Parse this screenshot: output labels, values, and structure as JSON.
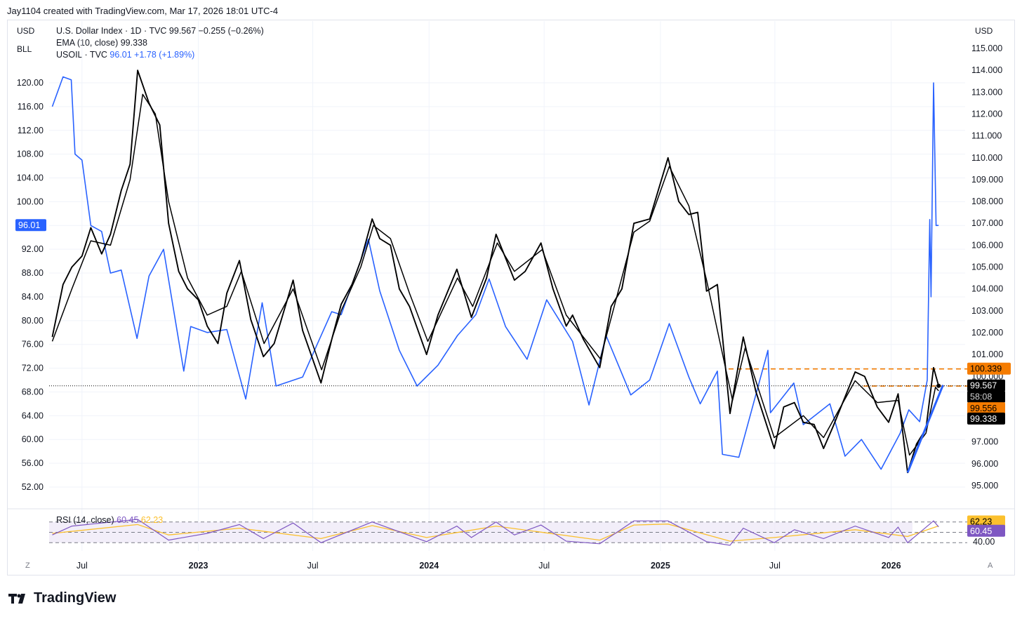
{
  "header": {
    "attribution": "Jay1104 created with TradingView.com, Mar 17, 2026 18:01 UTC-4"
  },
  "left_top": {
    "currency": "USD",
    "scale_label": "BLL"
  },
  "right_top": {
    "currency": "USD"
  },
  "legend": {
    "line1": "U.S. Dollar Index · 1D · TVC  99.567  −0.255 (−0.26%)",
    "line2": "EMA (10, close)  99.338",
    "line3_prefix": "USOIL · TVC",
    "line3_values": "96.01  +1.78 (+1.89%)"
  },
  "rsi": {
    "label": "RSI (14, close)",
    "value": "60.45",
    "ma_value": "62.23"
  },
  "corners": {
    "left": "Z",
    "right": "A"
  },
  "brand": {
    "name": "TradingView"
  },
  "colors": {
    "dxy": "#000000",
    "ema": "#000000",
    "oil": "#2962ff",
    "orange": "#f57c00",
    "rsi_line": "#7e57c2",
    "rsi_ma": "#fbc02d",
    "rsi_band": "#ede7f6"
  },
  "chart_data": {
    "type": "line",
    "x_ticks": [
      "Jul",
      "2023",
      "Jul",
      "2024",
      "Jul",
      "2025",
      "Jul",
      "2026"
    ],
    "left_axis": {
      "ticks": [
        "120.00",
        "116.00",
        "112.00",
        "108.00",
        "104.00",
        "100.00",
        "96.00",
        "92.00",
        "88.00",
        "84.00",
        "80.00",
        "76.00",
        "72.00",
        "68.00",
        "64.00",
        "60.00",
        "56.00",
        "52.00"
      ]
    },
    "right_axis": {
      "ticks": [
        "115.000",
        "114.000",
        "113.000",
        "112.000",
        "111.000",
        "110.000",
        "109.000",
        "108.000",
        "107.000",
        "106.000",
        "105.000",
        "104.000",
        "103.000",
        "102.000",
        "101.000",
        "100.000",
        "97.000",
        "96.000",
        "95.000"
      ]
    },
    "series": [
      {
        "name": "U.S. Dollar Index",
        "axis": "right",
        "values": [
          [
            "2022-05-15",
            101.8
          ],
          [
            "2022-06-01",
            104.2
          ],
          [
            "2022-06-15",
            105.0
          ],
          [
            "2022-07-01",
            105.5
          ],
          [
            "2022-07-15",
            106.8
          ],
          [
            "2022-08-01",
            105.6
          ],
          [
            "2022-08-15",
            106.5
          ],
          [
            "2022-09-01",
            108.5
          ],
          [
            "2022-09-15",
            109.7
          ],
          [
            "2022-09-27",
            114.0
          ],
          [
            "2022-10-15",
            112.5
          ],
          [
            "2022-11-01",
            111.5
          ],
          [
            "2022-11-15",
            107.0
          ],
          [
            "2022-12-01",
            104.8
          ],
          [
            "2022-12-15",
            104.0
          ],
          [
            "2023-01-01",
            103.5
          ],
          [
            "2023-01-15",
            102.3
          ],
          [
            "2023-02-01",
            101.5
          ],
          [
            "2023-02-15",
            103.8
          ],
          [
            "2023-03-07",
            105.3
          ],
          [
            "2023-03-25",
            102.6
          ],
          [
            "2023-04-14",
            100.9
          ],
          [
            "2023-05-01",
            101.5
          ],
          [
            "2023-05-31",
            104.4
          ],
          [
            "2023-06-15",
            102.1
          ],
          [
            "2023-07-14",
            99.7
          ],
          [
            "2023-08-01",
            101.8
          ],
          [
            "2023-08-15",
            103.3
          ],
          [
            "2023-09-01",
            104.2
          ],
          [
            "2023-09-15",
            105.3
          ],
          [
            "2023-10-03",
            107.2
          ],
          [
            "2023-10-15",
            106.3
          ],
          [
            "2023-11-01",
            106.0
          ],
          [
            "2023-11-15",
            104.0
          ],
          [
            "2023-12-01",
            103.2
          ],
          [
            "2023-12-28",
            101.0
          ],
          [
            "2024-01-15",
            102.8
          ],
          [
            "2024-02-14",
            104.9
          ],
          [
            "2024-03-08",
            102.7
          ],
          [
            "2024-04-01",
            104.5
          ],
          [
            "2024-04-16",
            106.5
          ],
          [
            "2024-05-15",
            104.4
          ],
          [
            "2024-06-01",
            104.8
          ],
          [
            "2024-06-26",
            106.1
          ],
          [
            "2024-07-15",
            104.0
          ],
          [
            "2024-08-05",
            102.3
          ],
          [
            "2024-08-15",
            102.8
          ],
          [
            "2024-09-01",
            101.7
          ],
          [
            "2024-09-27",
            100.4
          ],
          [
            "2024-10-15",
            103.2
          ],
          [
            "2024-11-01",
            104.0
          ],
          [
            "2024-11-20",
            107.0
          ],
          [
            "2024-12-15",
            107.2
          ],
          [
            "2025-01-13",
            110.0
          ],
          [
            "2025-01-30",
            108.0
          ],
          [
            "2025-02-15",
            107.4
          ],
          [
            "2025-03-01",
            107.5
          ],
          [
            "2025-03-15",
            103.9
          ],
          [
            "2025-04-01",
            104.2
          ],
          [
            "2025-04-21",
            98.3
          ],
          [
            "2025-05-12",
            101.8
          ],
          [
            "2025-06-01",
            99.3
          ],
          [
            "2025-06-30",
            96.7
          ],
          [
            "2025-07-15",
            98.6
          ],
          [
            "2025-08-01",
            98.8
          ],
          [
            "2025-08-15",
            97.9
          ],
          [
            "2025-09-01",
            97.8
          ],
          [
            "2025-09-16",
            96.7
          ],
          [
            "2025-10-01",
            97.7
          ],
          [
            "2025-11-05",
            100.2
          ],
          [
            "2025-11-20",
            100.0
          ],
          [
            "2025-12-10",
            98.6
          ],
          [
            "2025-12-28",
            97.9
          ],
          [
            "2026-01-12",
            99.2
          ],
          [
            "2026-01-27",
            95.6
          ],
          [
            "2026-02-10",
            96.9
          ],
          [
            "2026-02-25",
            97.6
          ],
          [
            "2026-03-09",
            100.4
          ],
          [
            "2026-03-17",
            99.567
          ]
        ]
      },
      {
        "name": "EMA (10, close)",
        "axis": "right",
        "values": [
          [
            "2022-05-15",
            101.6
          ],
          [
            "2022-06-15",
            104.0
          ],
          [
            "2022-07-15",
            106.2
          ],
          [
            "2022-08-15",
            106.0
          ],
          [
            "2022-09-15",
            109.0
          ],
          [
            "2022-10-05",
            112.9
          ],
          [
            "2022-10-25",
            112.0
          ],
          [
            "2022-11-15",
            108.0
          ],
          [
            "2022-12-15",
            104.5
          ],
          [
            "2023-01-15",
            102.8
          ],
          [
            "2023-02-15",
            103.2
          ],
          [
            "2023-03-10",
            104.8
          ],
          [
            "2023-04-15",
            101.5
          ],
          [
            "2023-05-31",
            104.0
          ],
          [
            "2023-07-15",
            100.3
          ],
          [
            "2023-08-15",
            103.0
          ],
          [
            "2023-09-15",
            105.0
          ],
          [
            "2023-10-05",
            106.9
          ],
          [
            "2023-11-01",
            106.3
          ],
          [
            "2023-12-01",
            103.8
          ],
          [
            "2023-12-30",
            101.6
          ],
          [
            "2024-02-15",
            104.5
          ],
          [
            "2024-03-10",
            103.2
          ],
          [
            "2024-04-18",
            106.1
          ],
          [
            "2024-05-15",
            104.8
          ],
          [
            "2024-06-28",
            105.8
          ],
          [
            "2024-08-05",
            102.8
          ],
          [
            "2024-09-28",
            100.8
          ],
          [
            "2024-11-20",
            106.6
          ],
          [
            "2024-12-15",
            107.1
          ],
          [
            "2025-01-15",
            109.6
          ],
          [
            "2025-02-15",
            107.8
          ],
          [
            "2025-03-15",
            104.4
          ],
          [
            "2025-04-25",
            98.9
          ],
          [
            "2025-05-15",
            101.3
          ],
          [
            "2025-06-30",
            97.2
          ],
          [
            "2025-08-15",
            98.2
          ],
          [
            "2025-09-16",
            97.2
          ],
          [
            "2025-11-05",
            99.8
          ],
          [
            "2025-12-10",
            98.8
          ],
          [
            "2026-01-12",
            98.9
          ],
          [
            "2026-01-30",
            96.4
          ],
          [
            "2026-02-25",
            97.4
          ],
          [
            "2026-03-12",
            99.5
          ],
          [
            "2026-03-17",
            99.338
          ]
        ]
      },
      {
        "name": "USOIL",
        "axis": "left",
        "values": [
          [
            "2022-05-15",
            116.0
          ],
          [
            "2022-06-01",
            121.0
          ],
          [
            "2022-06-14",
            120.5
          ],
          [
            "2022-06-20",
            108.0
          ],
          [
            "2022-07-01",
            107.0
          ],
          [
            "2022-07-15",
            96.0
          ],
          [
            "2022-08-01",
            95.0
          ],
          [
            "2022-08-15",
            88.0
          ],
          [
            "2022-09-01",
            88.5
          ],
          [
            "2022-09-26",
            77.0
          ],
          [
            "2022-10-15",
            87.5
          ],
          [
            "2022-11-07",
            92.0
          ],
          [
            "2022-12-09",
            71.5
          ],
          [
            "2022-12-20",
            79.0
          ],
          [
            "2023-01-15",
            78.0
          ],
          [
            "2023-02-15",
            78.5
          ],
          [
            "2023-03-17",
            66.8
          ],
          [
            "2023-04-12",
            83.0
          ],
          [
            "2023-05-04",
            69.0
          ],
          [
            "2023-06-15",
            70.5
          ],
          [
            "2023-07-31",
            81.5
          ],
          [
            "2023-08-15",
            81.0
          ],
          [
            "2023-09-27",
            93.7
          ],
          [
            "2023-10-15",
            85.0
          ],
          [
            "2023-11-15",
            75.0
          ],
          [
            "2023-12-13",
            69.0
          ],
          [
            "2024-01-15",
            72.5
          ],
          [
            "2024-02-15",
            77.5
          ],
          [
            "2024-03-15",
            81.0
          ],
          [
            "2024-04-05",
            87.0
          ],
          [
            "2024-05-01",
            79.0
          ],
          [
            "2024-06-04",
            73.5
          ],
          [
            "2024-07-05",
            83.5
          ],
          [
            "2024-08-15",
            76.5
          ],
          [
            "2024-09-10",
            65.8
          ],
          [
            "2024-10-07",
            77.5
          ],
          [
            "2024-11-15",
            67.5
          ],
          [
            "2024-12-15",
            70.0
          ],
          [
            "2025-01-15",
            79.5
          ],
          [
            "2025-02-15",
            70.5
          ],
          [
            "2025-03-05",
            66.0
          ],
          [
            "2025-04-01",
            71.5
          ],
          [
            "2025-04-09",
            57.5
          ],
          [
            "2025-05-05",
            57.0
          ],
          [
            "2025-06-20",
            75.0
          ],
          [
            "2025-06-24",
            64.5
          ],
          [
            "2025-07-31",
            69.5
          ],
          [
            "2025-08-15",
            62.5
          ],
          [
            "2025-09-26",
            66.0
          ],
          [
            "2025-10-20",
            57.2
          ],
          [
            "2025-11-15",
            60.0
          ],
          [
            "2025-12-16",
            55.0
          ],
          [
            "2026-01-15",
            61.0
          ],
          [
            "2026-01-29",
            65.0
          ],
          [
            "2026-02-15",
            63.0
          ],
          [
            "2026-02-27",
            70.0
          ],
          [
            "2026-03-03",
            97.0
          ],
          [
            "2026-03-05",
            84.0
          ],
          [
            "2026-03-09",
            120.0
          ],
          [
            "2026-03-13",
            96.0
          ],
          [
            "2026-03-17",
            96.01
          ]
        ]
      }
    ],
    "price_labels": [
      {
        "series": "USOIL",
        "value": "96.01"
      },
      {
        "series": "level",
        "value": "100.339"
      },
      {
        "series": "U.S. Dollar Index",
        "value": "99.567"
      },
      {
        "series": "countdown",
        "value": "58:08"
      },
      {
        "series": "level",
        "value": "99.556"
      },
      {
        "series": "EMA (10, close)",
        "value": "99.338"
      }
    ],
    "horizontal_levels": [
      {
        "value": 100.339,
        "style": "dashed",
        "color": "orange"
      },
      {
        "value": 99.556,
        "style": "dashed",
        "color": "orange"
      },
      {
        "value": 99.567,
        "style": "dotted",
        "color": "black"
      }
    ],
    "trendline": {
      "from": [
        "2026-01-27",
        95.6
      ],
      "to": [
        "2026-03-24",
        99.6
      ],
      "color": "blue"
    },
    "rsi_chart": {
      "axis_ticks": [
        "62.23",
        "60.45",
        "40.00"
      ],
      "bands": [
        70,
        50,
        30
      ],
      "rsi": [
        [
          "2022-05-15",
          45
        ],
        [
          "2022-06-15",
          62
        ],
        [
          "2022-09-27",
          75
        ],
        [
          "2022-11-15",
          35
        ],
        [
          "2023-01-15",
          48
        ],
        [
          "2023-03-07",
          65
        ],
        [
          "2023-04-14",
          38
        ],
        [
          "2023-05-31",
          68
        ],
        [
          "2023-07-14",
          30
        ],
        [
          "2023-10-03",
          70
        ],
        [
          "2023-12-28",
          32
        ],
        [
          "2024-02-14",
          62
        ],
        [
          "2024-03-08",
          40
        ],
        [
          "2024-04-16",
          70
        ],
        [
          "2024-05-15",
          45
        ],
        [
          "2024-06-26",
          64
        ],
        [
          "2024-08-05",
          33
        ],
        [
          "2024-09-27",
          28
        ],
        [
          "2024-11-20",
          72
        ],
        [
          "2025-01-13",
          72
        ],
        [
          "2025-03-15",
          32
        ],
        [
          "2025-04-21",
          25
        ],
        [
          "2025-05-12",
          58
        ],
        [
          "2025-06-30",
          30
        ],
        [
          "2025-08-01",
          55
        ],
        [
          "2025-09-16",
          38
        ],
        [
          "2025-11-05",
          62
        ],
        [
          "2025-12-28",
          40
        ],
        [
          "2026-01-12",
          60
        ],
        [
          "2026-01-27",
          30
        ],
        [
          "2026-03-09",
          72
        ],
        [
          "2026-03-17",
          60.45
        ]
      ],
      "ma": [
        [
          "2022-05-15",
          48
        ],
        [
          "2022-09-27",
          65
        ],
        [
          "2022-11-15",
          45
        ],
        [
          "2023-03-07",
          58
        ],
        [
          "2023-07-14",
          38
        ],
        [
          "2023-10-03",
          63
        ],
        [
          "2023-12-28",
          40
        ],
        [
          "2024-04-16",
          62
        ],
        [
          "2024-09-27",
          35
        ],
        [
          "2024-11-20",
          64
        ],
        [
          "2025-01-13",
          66
        ],
        [
          "2025-04-21",
          33
        ],
        [
          "2025-06-30",
          40
        ],
        [
          "2025-11-05",
          55
        ],
        [
          "2026-01-27",
          42
        ],
        [
          "2026-03-17",
          62.23
        ]
      ]
    }
  }
}
